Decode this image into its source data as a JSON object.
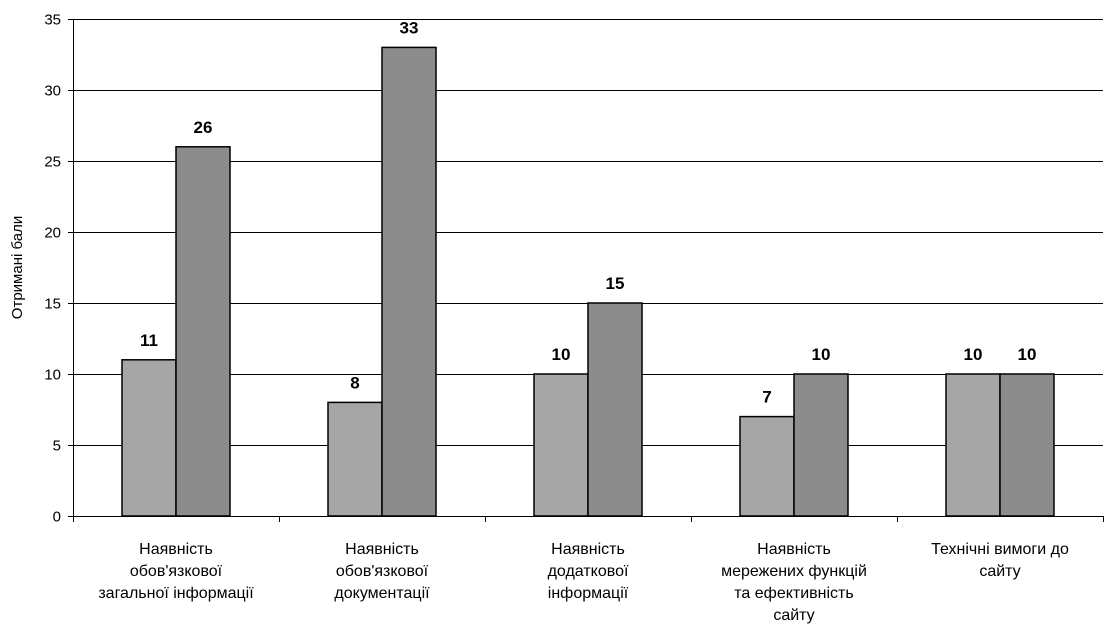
{
  "chart_data": {
    "type": "bar",
    "ylabel": "Отримані бали",
    "ylim": [
      0,
      35
    ],
    "y_ticks": [
      0,
      5,
      10,
      15,
      20,
      25,
      30,
      35
    ],
    "grid": true,
    "categories": [
      [
        "Наявність",
        "обов'язкової",
        "загальної інформації"
      ],
      [
        "Наявність",
        "обов'язкової",
        "документації"
      ],
      [
        "Наявність",
        "додаткової",
        "інформації"
      ],
      [
        "Наявність",
        "мережених функцій",
        "та ефективність",
        "сайту"
      ],
      [
        "Технічні вимоги до",
        "сайту"
      ]
    ],
    "series": [
      {
        "values": [
          11,
          8,
          10,
          7,
          10
        ],
        "color": "#a6a6a6"
      },
      {
        "values": [
          26,
          33,
          15,
          10,
          10
        ],
        "color": "#8c8c8c"
      }
    ]
  }
}
